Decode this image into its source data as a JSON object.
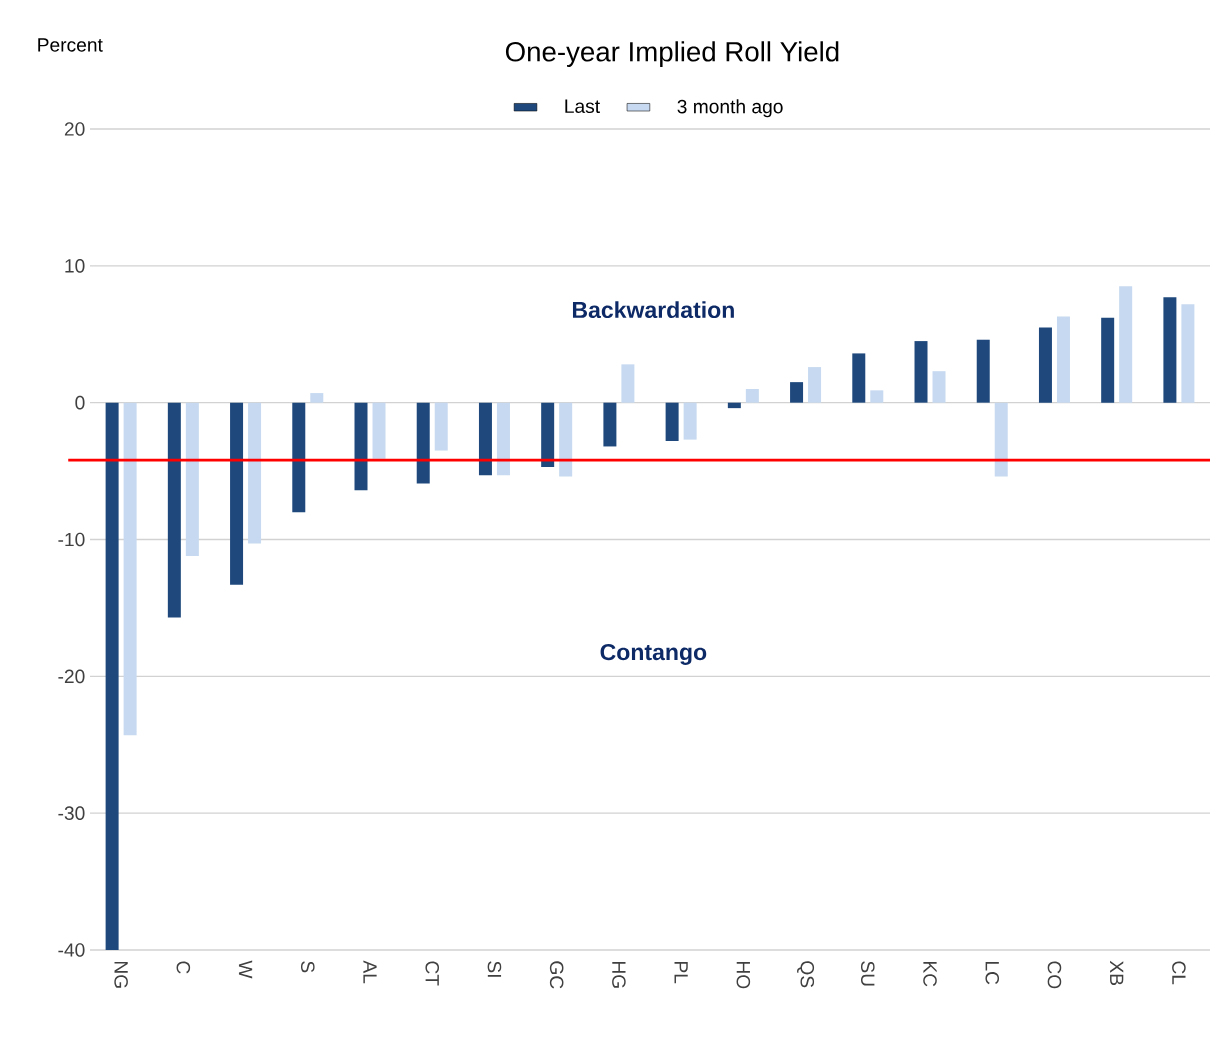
{
  "chart_data": {
    "type": "bar",
    "title": "One-year Implied Roll Yield",
    "ylabel": "Percent",
    "categories": [
      "NG",
      "C",
      "W",
      "S",
      "AL",
      "CT",
      "SI",
      "GC",
      "HG",
      "PL",
      "HO",
      "QS",
      "SU",
      "KC",
      "LC",
      "CO",
      "XB",
      "CL"
    ],
    "series": [
      {
        "name": "Last",
        "color": "#1f497d",
        "values": [
          -40,
          -15.7,
          -13.3,
          -8.0,
          -6.4,
          -5.9,
          -5.3,
          -4.7,
          -3.2,
          -2.8,
          -0.4,
          1.5,
          3.6,
          4.5,
          4.6,
          5.5,
          6.2,
          7.7
        ]
      },
      {
        "name": "3 month ago",
        "color": "#c6d9f0",
        "values": [
          -24.3,
          -11.2,
          -10.3,
          0.7,
          -4.1,
          -3.5,
          -5.3,
          -5.4,
          2.8,
          -2.7,
          1.0,
          2.6,
          0.9,
          2.3,
          -5.4,
          6.3,
          8.5,
          7.2
        ]
      }
    ],
    "annotations": [
      "Backwardation",
      "Contango"
    ],
    "ref_lines": [
      {
        "axis": "y",
        "value": -4.2,
        "color": "#ff0000"
      }
    ],
    "ylim": [
      -40,
      20
    ],
    "yticks": [
      -40,
      -30,
      -20,
      -10,
      0,
      10,
      20
    ],
    "grid": "y",
    "legend": "top"
  }
}
